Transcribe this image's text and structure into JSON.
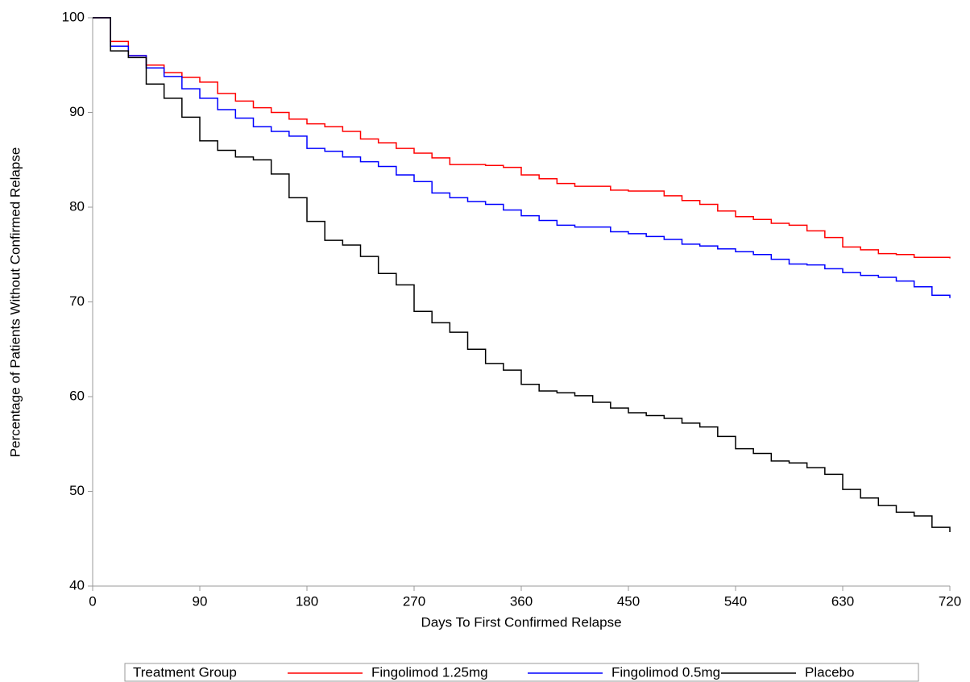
{
  "chart_data": {
    "type": "line",
    "step": "post",
    "x_label": "Days To First Confirmed Relapse",
    "y_label": "Percentage of Patients Without Confirmed Relapse",
    "legend_title": "Treatment Group",
    "legend": "bottom",
    "xlim": [
      0,
      720
    ],
    "xticks": [
      0,
      90,
      180,
      270,
      360,
      450,
      540,
      630,
      720
    ],
    "ylim": [
      40,
      100
    ],
    "yticks": [
      40,
      50,
      60,
      70,
      80,
      90,
      100
    ],
    "x": [
      0,
      15,
      30,
      45,
      60,
      75,
      90,
      105,
      120,
      135,
      150,
      165,
      180,
      195,
      210,
      225,
      240,
      255,
      270,
      285,
      300,
      315,
      330,
      345,
      360,
      375,
      390,
      405,
      420,
      435,
      450,
      465,
      480,
      495,
      510,
      525,
      540,
      555,
      570,
      585,
      600,
      615,
      630,
      645,
      660,
      675,
      690,
      705,
      720
    ],
    "series": [
      {
        "name": "Fingolimod 1.25mg",
        "color": "#ff0000",
        "values": [
          100,
          97.5,
          96,
          95,
          94.2,
          93.7,
          93.2,
          92,
          91.2,
          90.5,
          90,
          89.3,
          88.8,
          88.5,
          88,
          87.2,
          86.8,
          86.2,
          85.7,
          85.2,
          84.5,
          84.5,
          84.4,
          84.2,
          83.4,
          83,
          82.5,
          82.2,
          82.2,
          81.8,
          81.7,
          81.7,
          81.2,
          80.7,
          80.3,
          79.6,
          79,
          78.7,
          78.3,
          78.1,
          77.5,
          76.8,
          75.8,
          75.5,
          75.1,
          75,
          74.7,
          74.7,
          74.6
        ]
      },
      {
        "name": "Fingolimod 0.5mg",
        "color": "#0000ff",
        "values": [
          100,
          97,
          96,
          94.7,
          93.8,
          92.5,
          91.5,
          90.3,
          89.4,
          88.5,
          88,
          87.5,
          86.2,
          85.9,
          85.3,
          84.8,
          84.3,
          83.4,
          82.7,
          81.5,
          81,
          80.6,
          80.3,
          79.7,
          79.1,
          78.6,
          78.1,
          77.9,
          77.9,
          77.4,
          77.2,
          76.9,
          76.6,
          76.1,
          75.9,
          75.6,
          75.3,
          75,
          74.5,
          74,
          73.9,
          73.5,
          73.1,
          72.8,
          72.6,
          72.2,
          71.6,
          70.7,
          70.4
        ]
      },
      {
        "name": "Placebo",
        "color": "#000000",
        "values": [
          100,
          96.5,
          95.8,
          93,
          91.5,
          89.5,
          87,
          86,
          85.3,
          85,
          83.5,
          81,
          78.5,
          76.5,
          76,
          74.8,
          73,
          71.8,
          69,
          67.8,
          66.8,
          65,
          63.5,
          62.8,
          61.3,
          60.6,
          60.4,
          60.1,
          59.4,
          58.8,
          58.3,
          58,
          57.7,
          57.2,
          56.8,
          55.8,
          54.5,
          54,
          53.2,
          53,
          52.5,
          51.8,
          50.2,
          49.3,
          48.5,
          47.8,
          47.4,
          46.2,
          45.7
        ]
      }
    ]
  }
}
